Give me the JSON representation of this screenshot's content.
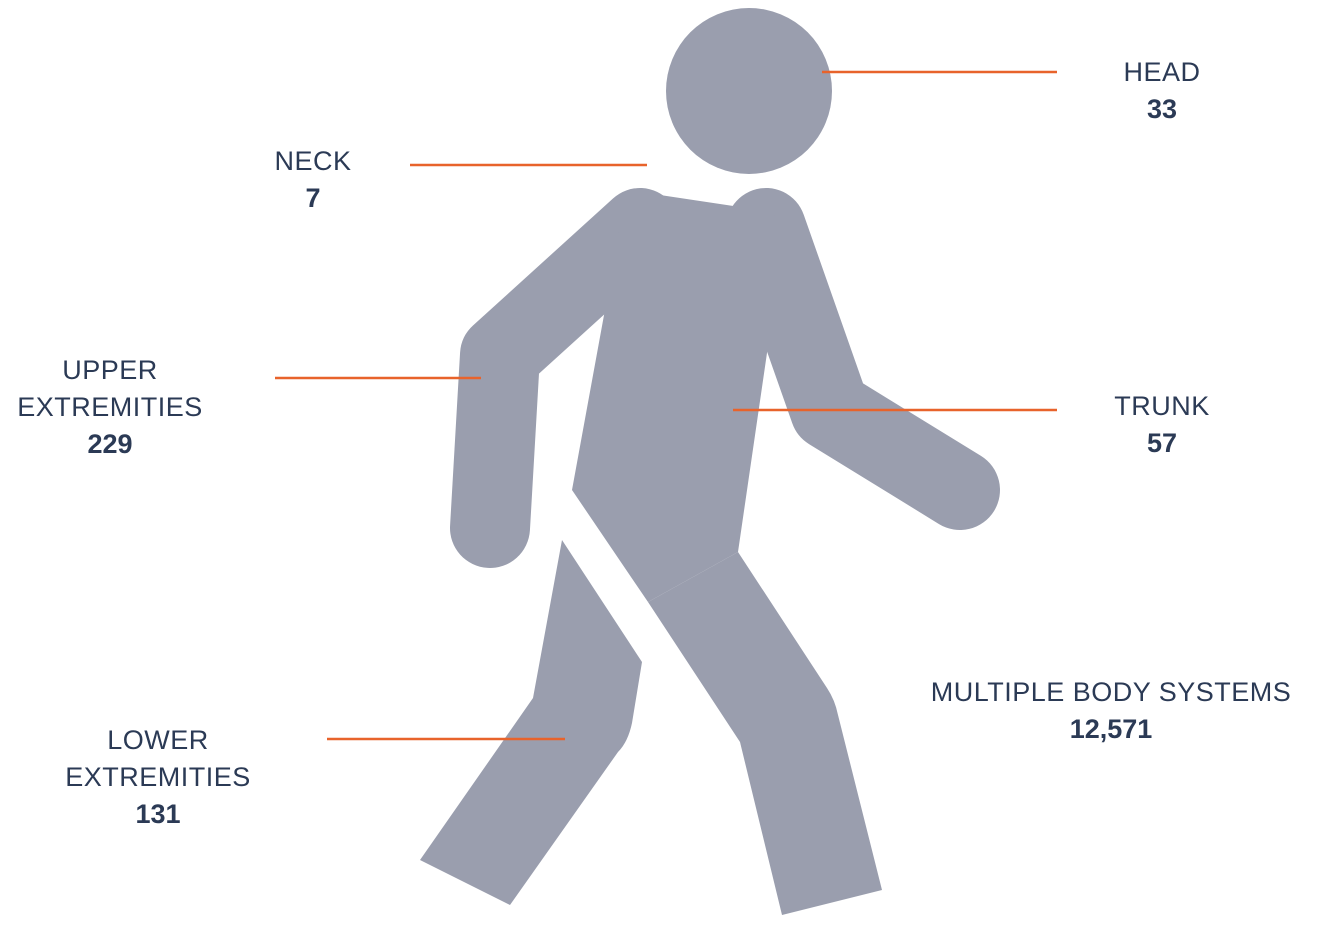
{
  "colors": {
    "figure": "#9a9eae",
    "leader": "#e8632b",
    "text": "#2b3a55"
  },
  "regions": {
    "head": {
      "name": "HEAD",
      "value": "33"
    },
    "neck": {
      "name": "NECK",
      "value": "7"
    },
    "upper_extremities": {
      "name": "UPPER\nEXTREMITIES",
      "value": "229"
    },
    "trunk": {
      "name": "TRUNK",
      "value": "57"
    },
    "multiple_body_systems": {
      "name": "MULTIPLE BODY SYSTEMS",
      "value": "12,571"
    },
    "lower_extremities": {
      "name": "LOWER\nEXTREMITIES",
      "value": "131"
    }
  },
  "figure_icon": "walking-person-icon"
}
